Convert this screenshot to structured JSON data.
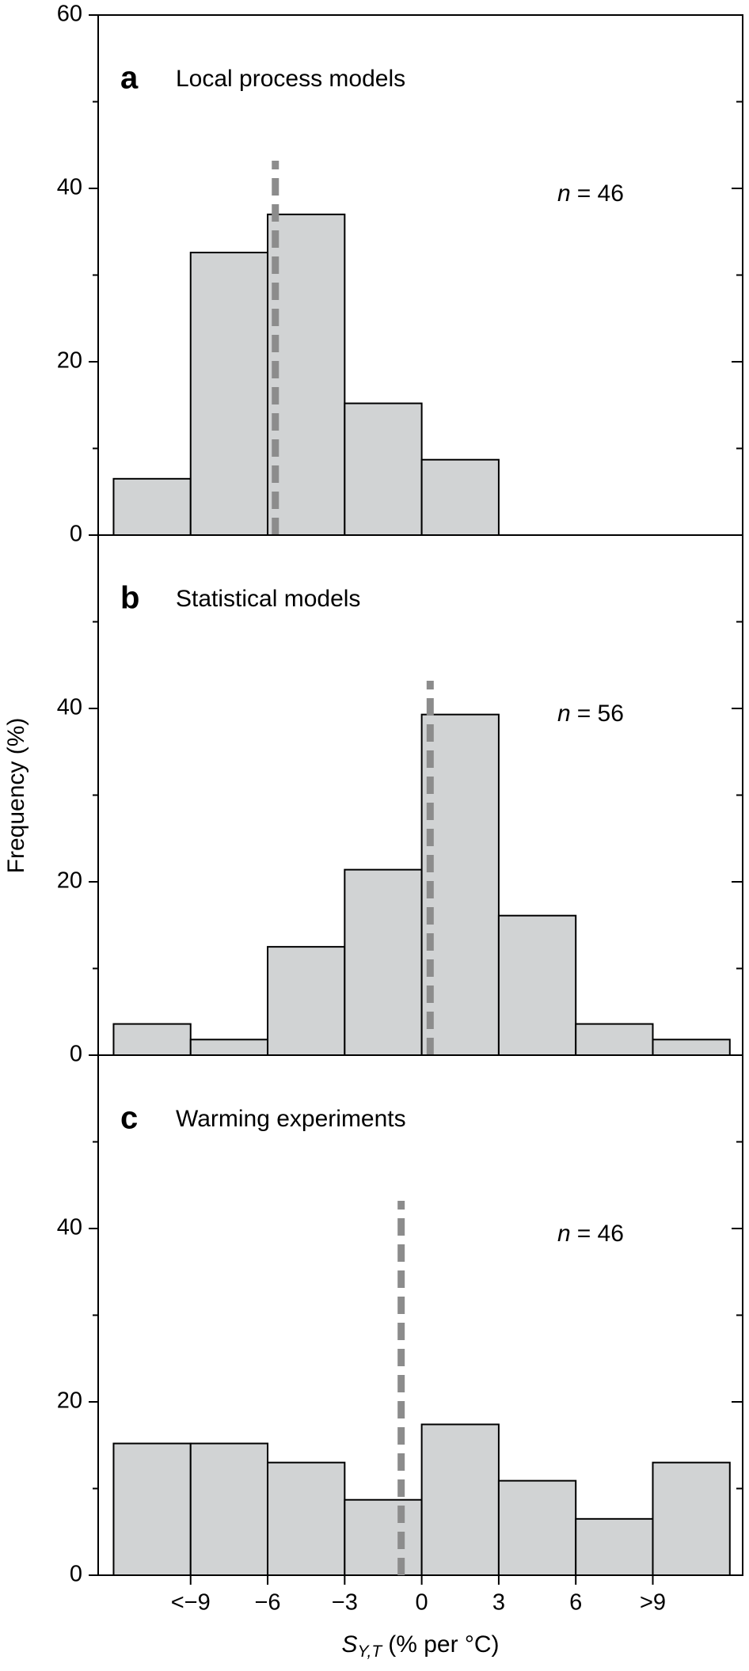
{
  "chart_data": [
    {
      "type": "histogram",
      "panel_label": "a",
      "title": "Local process models",
      "annotation_var": "n",
      "annotation_text": "= 46",
      "bins": [
        -12,
        -9,
        -6,
        -3,
        0,
        3,
        6,
        9,
        12
      ],
      "values": [
        6.5,
        32.6,
        37.0,
        15.2,
        8.7,
        0,
        0,
        0
      ],
      "color": "#d1d3d4",
      "median": -5.7,
      "median_color": "#8c8c8c",
      "xlim": [
        -12.6,
        12.5
      ],
      "ylim": [
        0,
        60
      ],
      "yticks": [
        0,
        20,
        40,
        60
      ],
      "minor_yticks": [
        10,
        30,
        50
      ]
    },
    {
      "type": "histogram",
      "panel_label": "b",
      "title": "Statistical models",
      "annotation_var": "n",
      "annotation_text": "= 56",
      "bins": [
        -12,
        -9,
        -6,
        -3,
        0,
        3,
        6,
        9,
        12
      ],
      "values": [
        3.6,
        1.8,
        12.5,
        21.4,
        39.3,
        16.1,
        3.6,
        1.8
      ],
      "color": "#d1d3d4",
      "median": 0.33,
      "median_color": "#8c8c8c",
      "ylabel": "Frequency (%)",
      "xlim": [
        -12.6,
        12.5
      ],
      "ylim": [
        0,
        60
      ],
      "yticks": [
        0,
        20,
        40
      ],
      "minor_yticks": [
        10,
        30,
        50
      ]
    },
    {
      "type": "histogram",
      "panel_label": "c",
      "title": "Warming experiments",
      "annotation_var": "n",
      "annotation_text": "= 46",
      "bins": [
        -12,
        -9,
        -6,
        -3,
        0,
        3,
        6,
        9,
        12
      ],
      "values": [
        15.2,
        15.2,
        13.0,
        8.7,
        17.4,
        10.9,
        6.5,
        13.0
      ],
      "color": "#d1d3d4",
      "median": -0.8,
      "median_color": "#8c8c8c",
      "xlabel": {
        "symbol": "S",
        "subscript": "Y,T",
        "text": "(% per °C)"
      },
      "xlim": [
        -12.6,
        12.5
      ],
      "ylim": [
        0,
        60
      ],
      "yticks": [
        0,
        20,
        40
      ],
      "minor_yticks": [
        10,
        30,
        50
      ],
      "xticks": [
        {
          "value": -9,
          "label": "<−9"
        },
        {
          "value": -6,
          "label": "−6"
        },
        {
          "value": -3,
          "label": "−3"
        },
        0,
        3,
        6,
        {
          "value": 9,
          "label": ">9"
        }
      ]
    }
  ]
}
